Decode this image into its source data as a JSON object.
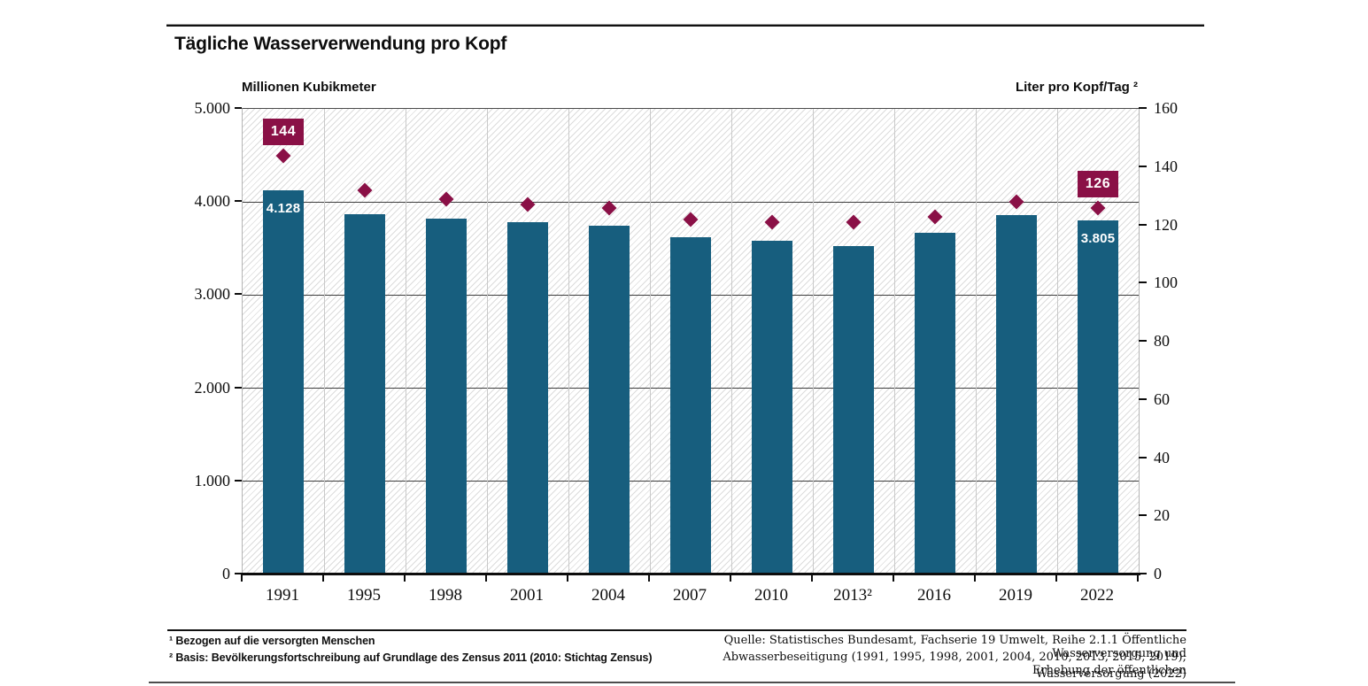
{
  "chart_data": {
    "type": "bar",
    "title": "Tägliche Wasserverwendung pro Kopf",
    "categories": [
      "1991",
      "1995",
      "1998",
      "2001",
      "2004",
      "2007",
      "2010",
      "2013²",
      "2016",
      "2019",
      "2022"
    ],
    "series": [
      {
        "name": "Wasserverwendung in Millionen Kubikmeter",
        "type": "bar",
        "axis": "left",
        "color": "#175e7e",
        "values": [
          4128,
          3870,
          3820,
          3780,
          3750,
          3620,
          3580,
          3530,
          3670,
          3860,
          3805
        ]
      },
      {
        "name": "Liter pro Kopf/Tag",
        "type": "scatter",
        "marker": "diamond",
        "axis": "right",
        "color": "#8a1046",
        "values": [
          144,
          132,
          129,
          127,
          126,
          122,
          121,
          121,
          123,
          128,
          126
        ]
      }
    ],
    "value_labels": [
      {
        "category": "1991",
        "bar": "4.128",
        "point": "144"
      },
      {
        "category": "2022",
        "bar": "3.805",
        "point": "126"
      }
    ],
    "left_axis": {
      "label": "Millionen Kubikmeter",
      "range": [
        0,
        5000
      ],
      "tick_step": 1000,
      "ticks": [
        "5.000",
        "4.000",
        "3.000",
        "2.000",
        "1.000",
        "0"
      ]
    },
    "right_axis": {
      "label": "Liter pro Kopf/Tag ²",
      "range": [
        0,
        160
      ],
      "tick_step": 20,
      "ticks": [
        "160",
        "140",
        "120",
        "100",
        "80",
        "60",
        "40",
        "20",
        "0"
      ]
    },
    "grid": "horizontal-major",
    "legend": "none",
    "background": "diagonal-hatch"
  },
  "footnotes": [
    "¹ Bezogen auf die versorgten Menschen",
    "² Basis: Bevölkerungsfortschreibung auf Grundlage des Zensus 2011 (2010: Stichtag Zensus)"
  ],
  "source": {
    "lines": [
      "Quelle: Statistisches Bundesamt, Fachserie 19 Umwelt, Reihe 2.1.1  Öffentliche Wasserversorgung und",
      "Abwasserbeseitigung (1991, 1995, 1998, 2001, 2004, 2010, 2013, 2015, 2019); Erhebung der öffentlichen",
      "Wasserversorgung (2022)"
    ]
  },
  "colors": {
    "bar": "#175e7e",
    "marker": "#8a1046",
    "value_label_text": "#ffffff",
    "gridline": "#3d3d3d",
    "hatch": "#dcdcdc"
  }
}
